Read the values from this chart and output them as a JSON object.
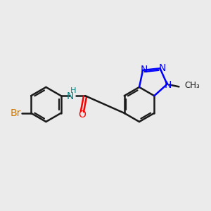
{
  "bg": "#ebebeb",
  "bc": "#1a1a1a",
  "nc": "#0000ff",
  "oc": "#ff0000",
  "brc": "#cc7700",
  "nhc": "#008888",
  "lw": 1.8,
  "lw_i": 1.6,
  "fs": 10,
  "fs_me": 8.5,
  "xlim": [
    0,
    10
  ],
  "ylim": [
    0,
    10
  ]
}
